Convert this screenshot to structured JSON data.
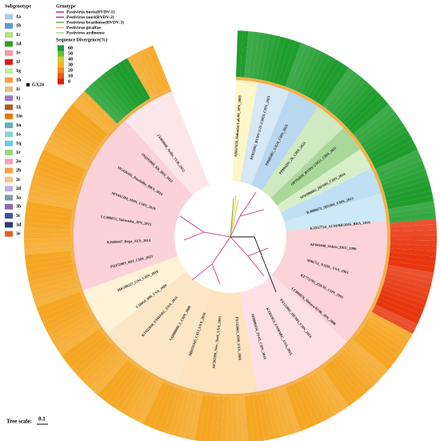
{
  "legend_subgenotype": {
    "title": "Subgenotype",
    "items": [
      {
        "label": "1a",
        "color": "#a6cee3"
      },
      {
        "label": "1b",
        "color": "#5b9bd5"
      },
      {
        "label": "1c",
        "color": "#b2df8a"
      },
      {
        "label": "1d",
        "color": "#33a02c"
      },
      {
        "label": "1e",
        "color": "#fb9a99"
      },
      {
        "label": "1f",
        "color": "#e31a1c"
      },
      {
        "label": "1g",
        "color": "#c7e9a0"
      },
      {
        "label": "1h",
        "color": "#ff9f40"
      },
      {
        "label": "1i",
        "color": "#e8c07d"
      },
      {
        "label": "1j",
        "color": "#9e7bc1"
      },
      {
        "label": "1k",
        "color": "#b15928"
      },
      {
        "label": "1m",
        "color": "#e07b00"
      },
      {
        "label": "1n",
        "color": "#5fb3b3"
      },
      {
        "label": "1o",
        "color": "#8dd3c7"
      },
      {
        "label": "1q",
        "color": "#6ecae6"
      },
      {
        "label": "1r",
        "color": "#9bd67a"
      },
      {
        "label": "2a",
        "color": "#f4a3b5"
      },
      {
        "label": "2b",
        "color": "#f5a142"
      },
      {
        "label": "2c",
        "color": "#fdc086"
      },
      {
        "label": "2d",
        "color": "#bcb3e0"
      },
      {
        "label": "3a",
        "color": "#7f9bb8"
      },
      {
        "label": "3b",
        "color": "#8c6bb1"
      },
      {
        "label": "3c",
        "color": "#3f51a0"
      },
      {
        "label": "3d",
        "color": "#2b3a7a"
      },
      {
        "label": "3e",
        "color": "#e0632a"
      }
    ]
  },
  "legend_genotype": {
    "title": "Genotype",
    "items": [
      {
        "label": "Pestivirus bovis(BVDV-1)",
        "color": "#d6278a"
      },
      {
        "label": "Pestivirus tauri(BVDV-2)",
        "color": "#a0399b"
      },
      {
        "label": "Pestivirus brazilense(BVDV-3)",
        "color": "#6aa84f"
      },
      {
        "label": "Pestivirus giraffae",
        "color": "#e6c619"
      },
      {
        "label": "Pestivirus aydinense",
        "color": "#9bd67a"
      }
    ]
  },
  "divergence_scale": {
    "title": "Sequence Divergence(%)",
    "ticks": [
      "60",
      "50",
      "40",
      "30",
      "20",
      "10",
      "0"
    ]
  },
  "marker_label": "GX24",
  "tree_scale": {
    "label": "Tree scale:",
    "value": "0.1"
  },
  "leaves": [
    "AB667658_Hokudai-Lab/09_JPN_2009",
    "PP823882_BVDV-2/JS-2/2023_CHN_2023",
    "PP683497_GX24_CHN_2023",
    "PP894291_2b_CHN_2023",
    "OP792838_BVDV-2/M21_CHN_2021",
    "MW006665_HEN01_CHN_2014",
    "KJ000673_SD1301_CHN_2013",
    "KX857724_ACM/BR/2016_BRA_2016",
    "AF041040_Osloss_DEU_1990",
    "M96751_NADL_USA_1963",
    "KF772785_ZM-95_CHN_1995",
    "LC089876_Shitara/02/06_JPN_2006",
    "PX122002_HEN01_CHN_2024",
    "KT832823_USMARC_USA_2015",
    "MH806434_29-02_CHN_2016",
    "PX122063_3590_USA_1989",
    "AF502399_New_York_USA_1993",
    "MH231145_C413_USA_2016",
    "GQ888686_1_CHN_2009",
    "KT832818_USMARC_USA_2015",
    "U18059_890_USA_1989",
    "MK599227_GS4_CHN_2018",
    "PQ152003_SD1_CHN_2023",
    "KJ689447_Bega_AUS_2014",
    "LC089875_Yokosuka_JPN_2015",
    "MN442384_SD01_CHN_2019",
    "HG426495_Paudalho_BRA_2014",
    "OQ291009_Kh_IRN_2022",
    "JX469848_Aydin_TUR_2012"
  ]
}
